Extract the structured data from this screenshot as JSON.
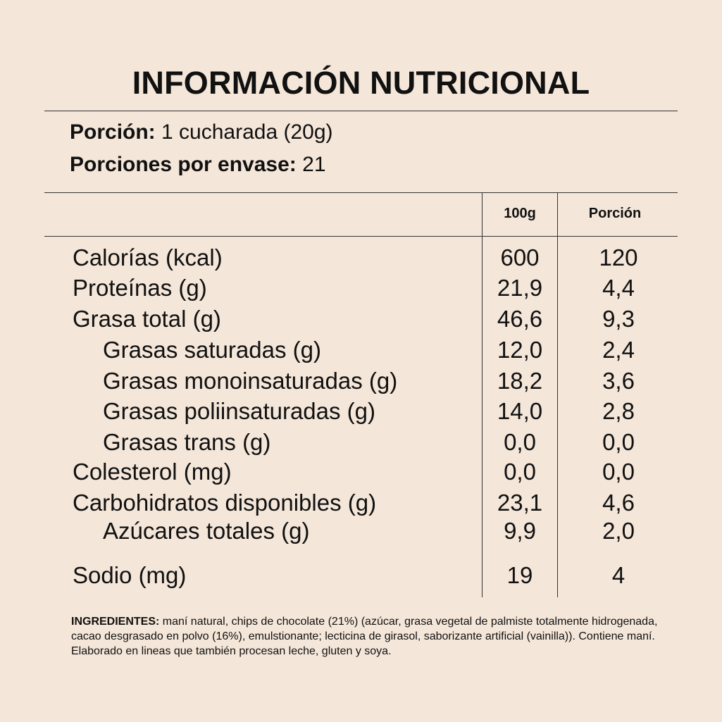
{
  "title": "INFORMACIÓN NUTRICIONAL",
  "serving": {
    "portion_label": "Porción:",
    "portion_value": " 1 cucharada (20g)",
    "per_pack_label": "Porciones por envase:",
    "per_pack_value": " 21"
  },
  "table": {
    "headers": {
      "per100": "100g",
      "portion": "Porción"
    },
    "rows": [
      {
        "label": "Calorías (kcal)",
        "per100": "600",
        "portion": "120"
      },
      {
        "label": "Proteínas (g)",
        "per100": "21,9",
        "portion": "4,4"
      },
      {
        "label": "Grasa total (g)",
        "per100": "46,6",
        "portion": "9,3"
      },
      {
        "label": "Grasas saturadas (g)",
        "per100": "12,0",
        "portion": "2,4"
      },
      {
        "label": "Grasas monoinsaturadas (g)",
        "per100": "18,2",
        "portion": "3,6"
      },
      {
        "label": "Grasas poliinsaturadas (g)",
        "per100": "14,0",
        "portion": "2,8"
      },
      {
        "label": "Grasas trans (g)",
        "per100": "0,0",
        "portion": "0,0"
      },
      {
        "label": "Colesterol (mg)",
        "per100": "0,0",
        "portion": "0,0"
      },
      {
        "label": "Carbohidratos disponibles (g)",
        "per100": "23,1",
        "portion": "4,6"
      },
      {
        "label": "Azúcares totales (g)",
        "per100": "9,9",
        "portion": "2,0"
      },
      {
        "label": "Sodio (mg)",
        "per100": "19",
        "portion": "4"
      }
    ]
  },
  "ingredients": {
    "label": "INGREDIENTES:",
    "text": " maní natural, chips de chocolate (21%) (azúcar, grasa vegetal de palmiste totalmente hidrogenada, cacao desgrasado en polvo (16%), emulstionante; lecticina de girasol, saborizante artificial (vainilla)). Contiene maní. Elaborado en lineas que también procesan leche, gluten y soya."
  }
}
